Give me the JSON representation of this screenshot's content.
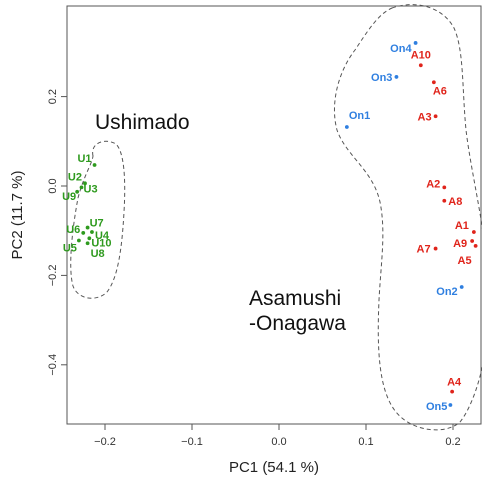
{
  "chart_data": {
    "type": "scatter",
    "xlabel": "PC1 (54.1 %)",
    "ylabel": "PC2 (11.7 %)",
    "xlim": [
      -0.25,
      0.23
    ],
    "ylim": [
      -0.52,
      0.34
    ],
    "x_ticks": [
      {
        "value": -0.2,
        "label": "−0.2"
      },
      {
        "value": -0.1,
        "label": "−0.1"
      },
      {
        "value": 0.0,
        "label": "0.0"
      },
      {
        "value": 0.1,
        "label": "0.1"
      },
      {
        "value": 0.2,
        "label": "0.2"
      }
    ],
    "y_ticks": [
      {
        "value": 0.2,
        "label": "0.2"
      },
      {
        "value": 0.0,
        "label": "0.0"
      },
      {
        "value": -0.2,
        "label": "−0.2"
      },
      {
        "value": -0.4,
        "label": "−0.4"
      }
    ],
    "grid": false,
    "group_labels": [
      {
        "key": "ushimado",
        "lines": [
          "Ushimado"
        ]
      },
      {
        "key": "asamushi",
        "lines": [
          "Asamushi",
          "-Onagawa"
        ]
      }
    ],
    "colors": {
      "U": "#2e9a1e",
      "A": "#e0241b",
      "On": "#2f7fe0"
    },
    "points": [
      {
        "name": "U1",
        "group": "U",
        "x": -0.212,
        "y": 0.047
      },
      {
        "name": "U2",
        "group": "U",
        "x": -0.223,
        "y": 0.006
      },
      {
        "name": "U3",
        "group": "U",
        "x": -0.227,
        "y": -0.003
      },
      {
        "name": "U9",
        "group": "U",
        "x": -0.232,
        "y": -0.013
      },
      {
        "name": "U7",
        "group": "U",
        "x": -0.22,
        "y": -0.093
      },
      {
        "name": "U4",
        "group": "U",
        "x": -0.215,
        "y": -0.103
      },
      {
        "name": "U6",
        "group": "U",
        "x": -0.225,
        "y": -0.105
      },
      {
        "name": "U10",
        "group": "U",
        "x": -0.218,
        "y": -0.117
      },
      {
        "name": "U5",
        "group": "U",
        "x": -0.23,
        "y": -0.122
      },
      {
        "name": "U8",
        "group": "U",
        "x": -0.22,
        "y": -0.128
      },
      {
        "name": "On4",
        "group": "On",
        "x": 0.157,
        "y": 0.32
      },
      {
        "name": "A10",
        "group": "A",
        "x": 0.163,
        "y": 0.27
      },
      {
        "name": "On3",
        "group": "On",
        "x": 0.135,
        "y": 0.244
      },
      {
        "name": "A6",
        "group": "A",
        "x": 0.178,
        "y": 0.232
      },
      {
        "name": "On1",
        "group": "On",
        "x": 0.078,
        "y": 0.132
      },
      {
        "name": "A3",
        "group": "A",
        "x": 0.18,
        "y": 0.156
      },
      {
        "name": "A2",
        "group": "A",
        "x": 0.19,
        "y": -0.003
      },
      {
        "name": "A8",
        "group": "A",
        "x": 0.19,
        "y": -0.033
      },
      {
        "name": "A1",
        "group": "A",
        "x": 0.224,
        "y": -0.103
      },
      {
        "name": "A9",
        "group": "A",
        "x": 0.222,
        "y": -0.123
      },
      {
        "name": "A5",
        "group": "A",
        "x": 0.226,
        "y": -0.134
      },
      {
        "name": "A7",
        "group": "A",
        "x": 0.18,
        "y": -0.14
      },
      {
        "name": "On2",
        "group": "On",
        "x": 0.21,
        "y": -0.226
      },
      {
        "name": "A4",
        "group": "A",
        "x": 0.199,
        "y": -0.46
      },
      {
        "name": "On5",
        "group": "On",
        "x": 0.197,
        "y": -0.49
      }
    ]
  }
}
